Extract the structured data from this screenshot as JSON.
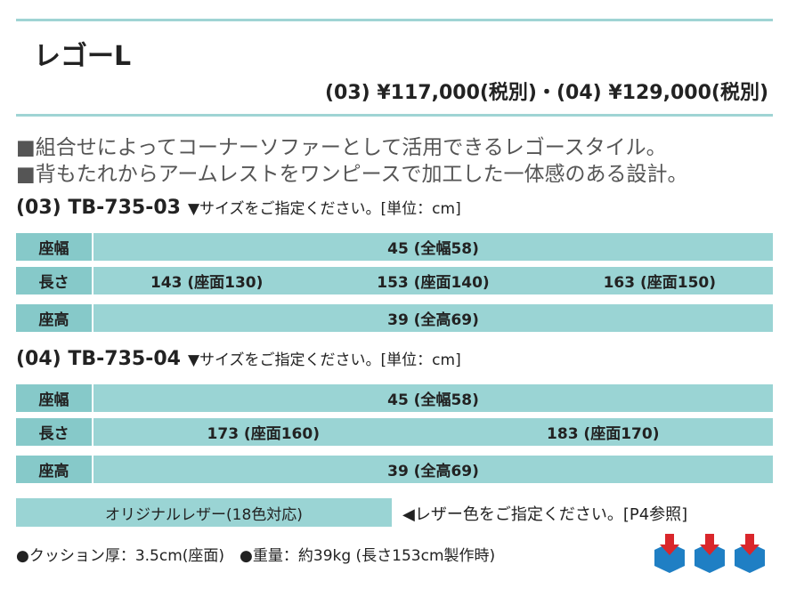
{
  "header": {
    "title": "レゴーL",
    "price": "(03) ¥117,000(税別)・(04) ¥129,000(税別)"
  },
  "description": [
    "■組合せによってコーナーソファーとして活用できるレゴースタイル。",
    "■背もたれからアームレストをワンピースで加工した一体感のある設計。"
  ],
  "sections": [
    {
      "heading": "(03) TB-735-03",
      "note": "▼サイズをご指定ください。[単位：cm]",
      "rows": [
        {
          "label": "座幅",
          "values": [
            "45 (全幅58)"
          ]
        },
        {
          "label": "長さ",
          "values": [
            "143 (座面130)",
            "153 (座面140)",
            "163 (座面150)"
          ]
        },
        {
          "label": "座高",
          "values": [
            "39 (全高69)"
          ]
        }
      ]
    },
    {
      "heading": "(04) TB-735-04",
      "note": "▼サイズをご指定ください。[単位：cm]",
      "rows": [
        {
          "label": "座幅",
          "values": [
            "45 (全幅58)"
          ]
        },
        {
          "label": "長さ",
          "values": [
            "173 (座面160)",
            "183 (座面170)"
          ]
        },
        {
          "label": "座高",
          "values": [
            "39 (全高69)"
          ]
        }
      ]
    }
  ],
  "leather": {
    "label": "オリジナルレザー(18色対応)",
    "note": "◀レザー色をご指定ください。[P4参照]"
  },
  "footer": "●クッション厚：3.5cm(座面)　●重量：約39kg (長さ153cm製作時)"
}
